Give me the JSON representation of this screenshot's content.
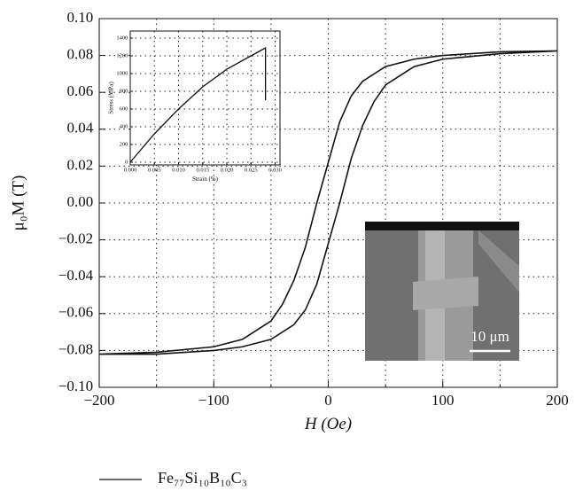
{
  "chart_data": [
    {
      "type": "line",
      "x_label": "H (Oe)",
      "y_label": "μ₀M (T)",
      "xlim": [
        -200,
        200
      ],
      "ylim": [
        -0.1,
        0.1
      ],
      "xticks": [
        {
          "value": -200,
          "label": "−200"
        },
        {
          "value": -100,
          "label": "−100"
        },
        0,
        100,
        200
      ],
      "xminor": [
        -150,
        -50,
        50,
        150
      ],
      "yticks": [
        {
          "value": -0.1,
          "label": "−0.10"
        },
        {
          "value": -0.08,
          "label": "−0.08"
        },
        {
          "value": -0.06,
          "label": "−0.06"
        },
        {
          "value": -0.04,
          "label": "−0.04"
        },
        {
          "value": -0.02,
          "label": "−0.02"
        },
        {
          "value": 0,
          "label": "0.00"
        },
        {
          "value": 0.02,
          "label": "0.02"
        },
        {
          "value": 0.04,
          "label": "0.04"
        },
        {
          "value": 0.06,
          "label": "0.06"
        },
        {
          "value": 0.08,
          "label": "0.08"
        },
        {
          "value": 0.1,
          "label": "0.10"
        }
      ],
      "grid": true,
      "legend": "bottom",
      "annotation": "10 μm",
      "series": [
        {
          "name": "Fe₇₇Si₁₀B₁₀C₃",
          "color": "#111111",
          "x": [
            200,
            150,
            100,
            75,
            50,
            30,
            20,
            10,
            0,
            -10,
            -20,
            -30,
            -40,
            -50,
            -75,
            -100,
            -150,
            -200,
            -150,
            -100,
            -75,
            -50,
            -30,
            -20,
            -10,
            0,
            10,
            20,
            30,
            40,
            50,
            75,
            100,
            150,
            200
          ],
          "values": [
            0.0825,
            0.082,
            0.08,
            0.078,
            0.074,
            0.066,
            0.058,
            0.044,
            0.022,
            0.0,
            -0.024,
            -0.042,
            -0.055,
            -0.064,
            -0.074,
            -0.078,
            -0.081,
            -0.082,
            -0.082,
            -0.08,
            -0.078,
            -0.074,
            -0.066,
            -0.058,
            -0.044,
            -0.022,
            0.0,
            0.024,
            0.042,
            0.055,
            0.064,
            0.074,
            0.078,
            0.081,
            0.0825
          ]
        }
      ]
    },
    {
      "type": "line",
      "x_label": "Strain (%)",
      "y_label": "Stress (MPa)",
      "xlim": [
        0,
        0.031
      ],
      "ylim": [
        -30,
        1480
      ],
      "xticks": [
        {
          "value": 0,
          "label": "0.000"
        },
        0.005,
        {
          "value": 0.01,
          "label": "0.010"
        },
        0.015,
        {
          "value": 0.02,
          "label": "0.020"
        },
        0.025,
        {
          "value": 0.03,
          "label": "0.030"
        }
      ],
      "yticks": [
        0,
        200,
        400,
        600,
        800,
        1000,
        1200,
        1400
      ],
      "grid": true,
      "series": [
        {
          "color": "#111111",
          "x": [
            0,
            0.005,
            0.01,
            0.015,
            0.02,
            0.025,
            0.028,
            0.028
          ],
          "values": [
            0,
            320,
            600,
            850,
            1050,
            1200,
            1290,
            700
          ]
        }
      ]
    }
  ]
}
